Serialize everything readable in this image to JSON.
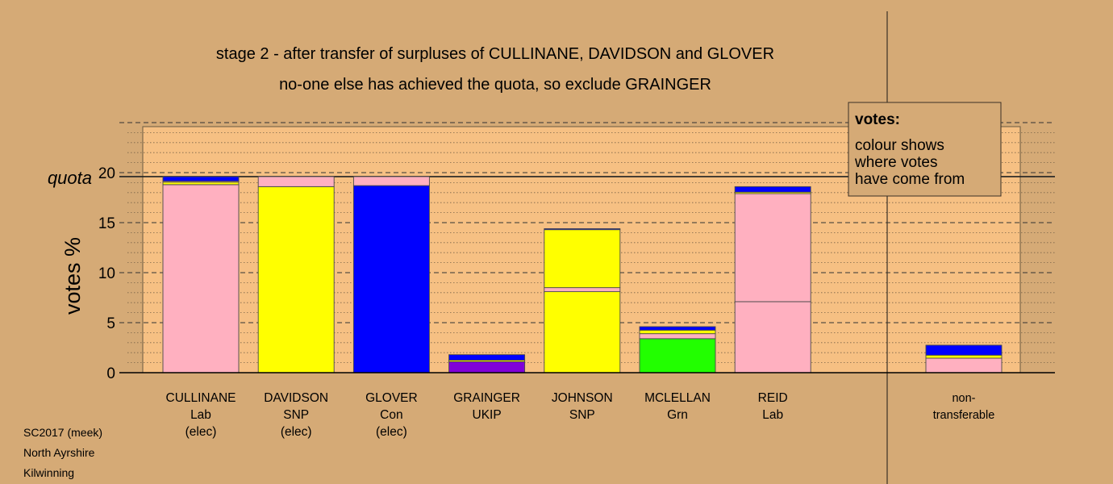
{
  "chart_data": {
    "type": "bar",
    "stacked": true,
    "title_lines": [
      "stage 2 - after transfer of surpluses of CULLINANE, DAVIDSON and GLOVER",
      "no-one else has achieved the quota, so exclude GRAINGER"
    ],
    "ylabel": "votes %",
    "ylim": [
      0,
      25
    ],
    "yticks": [
      0,
      5,
      10,
      15,
      20
    ],
    "quota": {
      "label": "quota",
      "value": 19.6
    },
    "legend": {
      "title": "votes:",
      "lines": [
        "colour shows",
        "where votes",
        "have come from"
      ],
      "placement": "top-right"
    },
    "colors": {
      "Lab": "#ffb0c0",
      "SNP": "#ffff00",
      "Con": "#0000ff",
      "UKIP": "#8000d8",
      "Grn": "#22ff00",
      "background": "#d5aa76",
      "plot_area": "#f6c083"
    },
    "candidates": [
      {
        "name": "CULLINANE",
        "party": "Lab",
        "status": "(elec)",
        "segments": [
          {
            "color": "Lab",
            "value": 18.8
          },
          {
            "color": "SNP",
            "value": 0.25
          },
          {
            "color": "Lab",
            "value": 0.1
          },
          {
            "color": "Con",
            "value": 0.45
          }
        ]
      },
      {
        "name": "DAVIDSON",
        "party": "SNP",
        "status": "(elec)",
        "segments": [
          {
            "color": "SNP",
            "value": 18.6
          },
          {
            "color": "Lab",
            "value": 1.0
          }
        ]
      },
      {
        "name": "GLOVER",
        "party": "Con",
        "status": "(elec)",
        "segments": [
          {
            "color": "Con",
            "value": 18.7
          },
          {
            "color": "Lab",
            "value": 0.9
          }
        ]
      },
      {
        "name": "GRAINGER",
        "party": "UKIP",
        "status": "",
        "segments": [
          {
            "color": "UKIP",
            "value": 1.1
          },
          {
            "color": "SNP",
            "value": 0.15
          },
          {
            "color": "Con",
            "value": 0.55
          }
        ]
      },
      {
        "name": "JOHNSON",
        "party": "SNP",
        "status": "",
        "segments": [
          {
            "color": "SNP",
            "value": 8.1
          },
          {
            "color": "Lab",
            "value": 0.4
          },
          {
            "color": "SNP",
            "value": 5.8
          },
          {
            "color": "Con",
            "value": 0.1
          }
        ]
      },
      {
        "name": "MCLELLAN",
        "party": "Grn",
        "status": "",
        "segments": [
          {
            "color": "Grn",
            "value": 3.4
          },
          {
            "color": "Lab",
            "value": 0.5
          },
          {
            "color": "SNP",
            "value": 0.35
          },
          {
            "color": "Con",
            "value": 0.35
          }
        ]
      },
      {
        "name": "REID",
        "party": "Lab",
        "status": "",
        "segments": [
          {
            "color": "Lab",
            "value": 7.1
          },
          {
            "color": "Lab",
            "value": 10.8
          },
          {
            "color": "SNP",
            "value": 0.15
          },
          {
            "color": "Con",
            "value": 0.55
          }
        ]
      }
    ],
    "non_transferable": {
      "label_lines": [
        "non-",
        "transferable"
      ],
      "segments": [
        {
          "color": "Lab",
          "value": 1.45
        },
        {
          "color": "SNP",
          "value": 0.3
        },
        {
          "color": "Con",
          "value": 1.0
        }
      ]
    }
  },
  "footer": {
    "line1": "SC2017 (meek)",
    "line2": "North Ayrshire",
    "line3": "Kilwinning"
  }
}
